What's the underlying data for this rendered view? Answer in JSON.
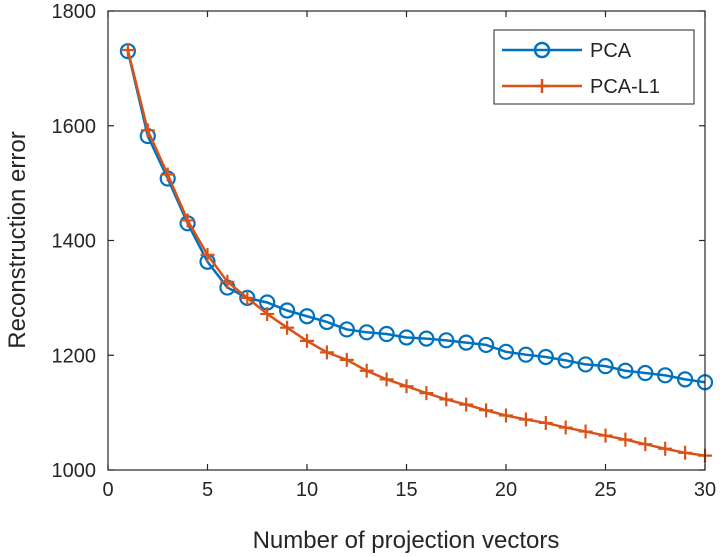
{
  "chart_data": {
    "type": "line",
    "title": "",
    "xlabel": "Number of projection vectors",
    "ylabel": "Reconstruction error",
    "xlim": [
      0,
      30
    ],
    "ylim": [
      1000,
      1800
    ],
    "xticks": [
      0,
      5,
      10,
      15,
      20,
      25,
      30
    ],
    "yticks": [
      1000,
      1200,
      1400,
      1600,
      1800
    ],
    "xtick_labels": [
      "0",
      "5",
      "10",
      "15",
      "20",
      "25",
      "30"
    ],
    "ytick_labels": [
      "1000",
      "1200",
      "1400",
      "1600",
      "1800"
    ],
    "grid": false,
    "legend_position": "top-right",
    "x": [
      1,
      2,
      3,
      4,
      5,
      6,
      7,
      8,
      9,
      10,
      11,
      12,
      13,
      14,
      15,
      16,
      17,
      18,
      19,
      20,
      21,
      22,
      23,
      24,
      25,
      26,
      27,
      28,
      29,
      30
    ],
    "series": [
      {
        "name": "PCA",
        "color": "#0072BD",
        "marker": "circle",
        "values": [
          1730,
          1582,
          1508,
          1430,
          1363,
          1318,
          1300,
          1292,
          1278,
          1268,
          1258,
          1245,
          1240,
          1237,
          1231,
          1229,
          1226,
          1222,
          1218,
          1206,
          1201,
          1197,
          1191,
          1184,
          1181,
          1173,
          1169,
          1165,
          1158,
          1153
        ]
      },
      {
        "name": "PCA-L1",
        "color": "#D95319",
        "marker": "plus",
        "values": [
          1732,
          1592,
          1515,
          1435,
          1375,
          1328,
          1300,
          1272,
          1248,
          1225,
          1205,
          1192,
          1173,
          1158,
          1146,
          1134,
          1123,
          1114,
          1104,
          1095,
          1088,
          1082,
          1074,
          1067,
          1060,
          1053,
          1045,
          1037,
          1030,
          1025
        ]
      }
    ]
  }
}
